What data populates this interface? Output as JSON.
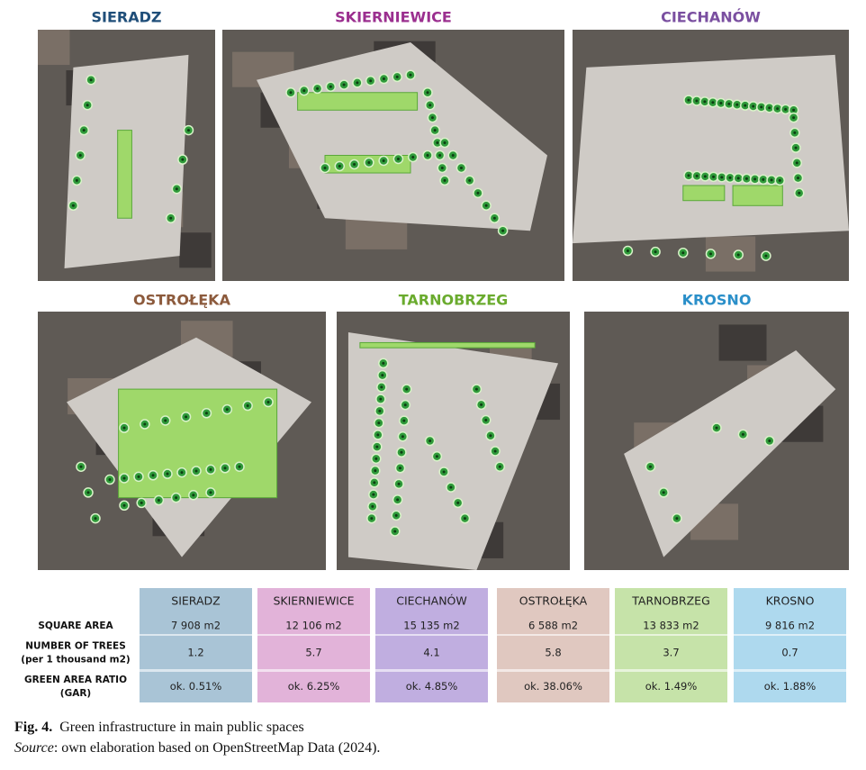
{
  "panels": [
    {
      "title": "SIERADZ",
      "color": "#1f4e79"
    },
    {
      "title": "SKIERNIEWICE",
      "color": "#9b2f8f"
    },
    {
      "title": "CIECHANÓW",
      "color": "#7a4fa0"
    },
    {
      "title": "OSTROŁĘKA",
      "color": "#8c5a3c"
    },
    {
      "title": "TARNOBRZEG",
      "color": "#6aab2e"
    },
    {
      "title": "KROSNO",
      "color": "#2a8fc9"
    }
  ],
  "table": {
    "columns": [
      "SIERADZ",
      "SKIERNIEWICE",
      "CIECHANÓW",
      "OSTROŁĘKA",
      "TARNOBRZEG",
      "KROSNO"
    ],
    "column_colors": [
      "#a9c4d6",
      "#e2b3d9",
      "#c0aee0",
      "#e0c8c0",
      "#c6e3a9",
      "#aed9ee"
    ],
    "row_labels": [
      [
        "SQUARE AREA"
      ],
      [
        "NUMBER OF TREES",
        "(per 1 thousand m2)"
      ],
      [
        "GREEN AREA RATIO",
        "(GAR)"
      ]
    ],
    "rows": [
      [
        "7 908 m2",
        "12 106 m2",
        "15 135 m2",
        "6 588 m2",
        "13 833 m2",
        "9 816 m2"
      ],
      [
        "1.2",
        "5.7",
        "4.1",
        "5.8",
        "3.7",
        "0.7"
      ],
      [
        "ok. 0.51%",
        "ok. 6.25%",
        "ok. 4.85%",
        "ok. 38.06%",
        "ok. 1.49%",
        "ok. 1.88%"
      ]
    ]
  },
  "caption": {
    "label": "Fig. 4.",
    "text": "Green infrastructure in main public spaces",
    "source_label": "Source",
    "source_text": ": own elaboration based on OpenStreetMap Data (2024)."
  }
}
